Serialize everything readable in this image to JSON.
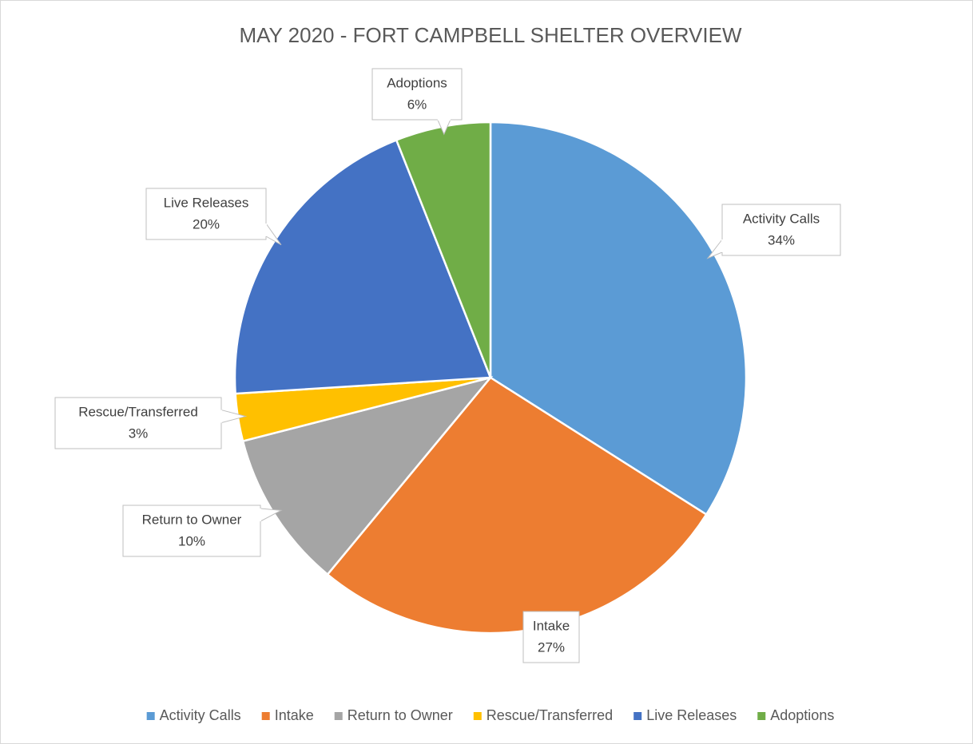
{
  "chart_data": {
    "type": "pie",
    "title": "MAY 2020 - FORT CAMPBELL SHELTER OVERVIEW",
    "categories": [
      "Activity Calls",
      "Intake",
      "Return to Owner",
      "Rescue/Transferred",
      "Live Releases",
      "Adoptions"
    ],
    "values": [
      34,
      27,
      10,
      3,
      20,
      6
    ],
    "value_labels": [
      "34%",
      "27%",
      "10%",
      "3%",
      "20%",
      "6%"
    ],
    "colors": [
      "#5b9bd5",
      "#ed7d31",
      "#a5a5a5",
      "#ffc000",
      "#4472c4",
      "#70ad47"
    ],
    "legend": "bottom"
  }
}
